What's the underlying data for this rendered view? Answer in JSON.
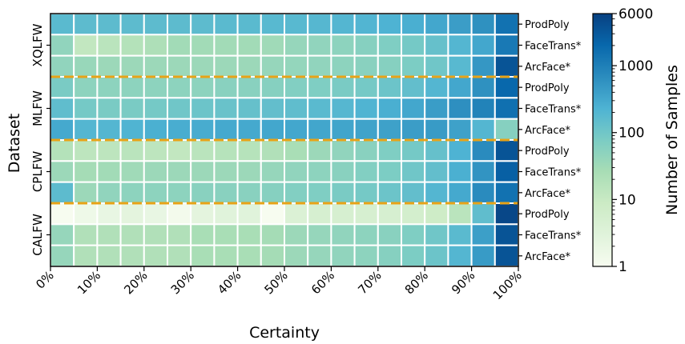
{
  "chart_data": {
    "type": "heatmap",
    "xlabel": "Certainty",
    "ylabel": "Dataset",
    "x_categories": [
      "0-5%",
      "5-10%",
      "10-15%",
      "15-20%",
      "20-25%",
      "25-30%",
      "30-35%",
      "35-40%",
      "40-45%",
      "45-50%",
      "50-55%",
      "55-60%",
      "60-65%",
      "65-70%",
      "70-75%",
      "75-80%",
      "80-85%",
      "85-90%",
      "90-95%",
      "95-100%"
    ],
    "x_tick_labels": [
      "0%",
      "10%",
      "20%",
      "30%",
      "40%",
      "50%",
      "60%",
      "70%",
      "80%",
      "90%",
      "100%"
    ],
    "groups": [
      "XQLFW",
      "MLFW",
      "CPLFW",
      "CALFW"
    ],
    "row_labels": [
      "ProdPoly",
      "FaceTrans*",
      "ArcFace*"
    ],
    "colorbar": {
      "label": "Number of Samples",
      "scale": "log",
      "range": [
        1,
        6000
      ],
      "ticks": [
        "1",
        "10",
        "100",
        "1000",
        "6000"
      ]
    },
    "separator_color": "#e8a317",
    "colormap": [
      "#f7fcf0",
      "#e0f3db",
      "#ccebc5",
      "#a8ddb5",
      "#7bccc4",
      "#4eb3d3",
      "#2b8cbe",
      "#0868ac",
      "#084081"
    ],
    "rows": [
      {
        "group": "XQLFW",
        "model": "ProdPoly",
        "values": [
          170,
          160,
          160,
          160,
          160,
          160,
          160,
          170,
          170,
          180,
          180,
          190,
          200,
          210,
          230,
          260,
          320,
          420,
          600,
          1500
        ]
      },
      {
        "group": "XQLFW",
        "model": "FaceTrans*",
        "values": [
          45,
          12,
          15,
          18,
          22,
          30,
          30,
          30,
          30,
          32,
          40,
          45,
          50,
          60,
          70,
          90,
          130,
          200,
          320,
          1200
        ]
      },
      {
        "group": "XQLFW",
        "model": "ArcFace*",
        "values": [
          45,
          38,
          35,
          35,
          35,
          35,
          35,
          35,
          35,
          40,
          42,
          45,
          50,
          55,
          60,
          75,
          100,
          180,
          500,
          3500
        ]
      },
      {
        "group": "MLFW",
        "model": "ProdPoly",
        "values": [
          80,
          50,
          50,
          50,
          50,
          50,
          50,
          55,
          55,
          60,
          65,
          70,
          80,
          90,
          110,
          140,
          200,
          320,
          600,
          2000
        ]
      },
      {
        "group": "MLFW",
        "model": "FaceTrans*",
        "values": [
          150,
          90,
          80,
          80,
          90,
          100,
          110,
          120,
          130,
          140,
          150,
          170,
          190,
          220,
          260,
          320,
          430,
          620,
          900,
          1600
        ]
      },
      {
        "group": "MLFW",
        "model": "ArcFace*",
        "values": [
          300,
          200,
          200,
          220,
          250,
          270,
          280,
          300,
          300,
          320,
          320,
          330,
          340,
          360,
          380,
          420,
          450,
          380,
          200,
          60
        ]
      },
      {
        "group": "CPLFW",
        "model": "ProdPoly",
        "values": [
          18,
          14,
          14,
          15,
          14,
          12,
          15,
          17,
          17,
          20,
          25,
          35,
          45,
          55,
          70,
          90,
          130,
          230,
          700,
          3500
        ]
      },
      {
        "group": "CPLFW",
        "model": "FaceTrans*",
        "values": [
          35,
          28,
          30,
          32,
          35,
          35,
          35,
          35,
          35,
          40,
          45,
          50,
          55,
          65,
          75,
          100,
          140,
          250,
          550,
          2500
        ]
      },
      {
        "group": "CPLFW",
        "model": "ArcFace*",
        "values": [
          160,
          35,
          45,
          50,
          50,
          50,
          55,
          55,
          55,
          60,
          65,
          70,
          80,
          90,
          110,
          140,
          200,
          300,
          700,
          1500
        ]
      },
      {
        "group": "CALFW",
        "model": "ProdPoly",
        "values": [
          1,
          1.5,
          2,
          2.5,
          2,
          1.2,
          2.5,
          3,
          3,
          1,
          4,
          5,
          5,
          5,
          5,
          6,
          8,
          15,
          150,
          5000
        ]
      },
      {
        "group": "CALFW",
        "model": "FaceTrans*",
        "values": [
          40,
          20,
          20,
          20,
          20,
          20,
          25,
          25,
          25,
          28,
          35,
          40,
          45,
          50,
          55,
          70,
          100,
          170,
          400,
          3500
        ]
      },
      {
        "group": "CALFW",
        "model": "ArcFace*",
        "values": [
          40,
          20,
          20,
          20,
          20,
          20,
          25,
          25,
          25,
          28,
          35,
          40,
          45,
          50,
          60,
          75,
          110,
          200,
          450,
          3500
        ]
      }
    ]
  }
}
